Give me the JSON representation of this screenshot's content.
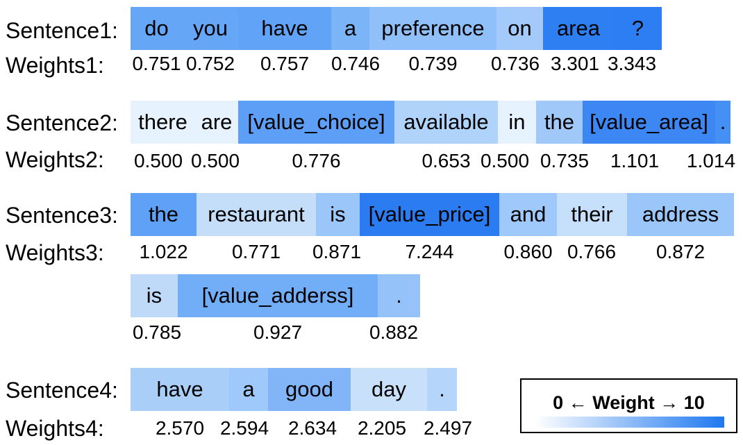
{
  "sentences": [
    {
      "label": "Sentence1:",
      "weights_label": "Weights1:",
      "tokens": [
        {
          "text": "do",
          "weight": "0.751",
          "color": "#66a6f7"
        },
        {
          "text": "you",
          "weight": "0.752",
          "color": "#66a6f7"
        },
        {
          "text": "have",
          "weight": "0.757",
          "color": "#61a3f7"
        },
        {
          "text": "a",
          "weight": "0.746",
          "color": "#7cb4f8"
        },
        {
          "text": "preference",
          "weight": "0.739",
          "color": "#8fc0fa"
        },
        {
          "text": "on",
          "weight": "0.736",
          "color": "#a3cafa"
        },
        {
          "text": "area",
          "weight": "3.301",
          "color": "#2e7ff2"
        },
        {
          "text": "?",
          "weight": "3.343",
          "color": "#2d7ef2"
        }
      ]
    },
    {
      "label": "Sentence2:",
      "weights_label": "Weights2:",
      "tokens": [
        {
          "text": "there",
          "weight": "0.500",
          "color": "#e6f2fe"
        },
        {
          "text": "are",
          "weight": "0.500",
          "color": "#e6f2fe"
        },
        {
          "text": "[value_choice]",
          "weight": "0.776",
          "color": "#5d9ff6"
        },
        {
          "text": "available",
          "weight": "0.653",
          "color": "#b0d3fb"
        },
        {
          "text": "in",
          "weight": "0.500",
          "color": "#e6f2fe"
        },
        {
          "text": "the",
          "weight": "0.735",
          "color": "#a0c9fa"
        },
        {
          "text": "[value_area]",
          "weight": "1.101",
          "color": "#3d87f4"
        },
        {
          "text": ".",
          "weight": "1.014",
          "color": "#4590f5"
        }
      ]
    },
    {
      "label": "Sentence3:",
      "weights_label": "Weights3:",
      "tokens": [
        {
          "text": "the",
          "weight": "1.022",
          "color": "#5ea1f6"
        },
        {
          "text": "restaurant",
          "weight": "0.771",
          "color": "#c4def9"
        },
        {
          "text": "is",
          "weight": "0.871",
          "color": "#9ac6f9"
        },
        {
          "text": "[value_price]",
          "weight": "7.244",
          "color": "#2a7cf0"
        },
        {
          "text": "and",
          "weight": "0.860",
          "color": "#9fc9fa"
        },
        {
          "text": "their",
          "weight": "0.766",
          "color": "#c6dffa"
        },
        {
          "text": "address",
          "weight": "0.872",
          "color": "#9ac6f9"
        },
        {
          "text": "is",
          "weight": "0.785",
          "color": "#bfdaf9"
        },
        {
          "text": "[value_adderss]",
          "weight": "0.927",
          "color": "#72adf7"
        },
        {
          "text": ".",
          "weight": "0.882",
          "color": "#95c3f9"
        }
      ]
    },
    {
      "label": "Sentence4:",
      "weights_label": "Weights4:",
      "tokens": [
        {
          "text": "have",
          "weight": "2.570",
          "color": "#a9cff9"
        },
        {
          "text": "a",
          "weight": "2.594",
          "color": "#9fc9fa"
        },
        {
          "text": "good",
          "weight": "2.634",
          "color": "#81b5f8"
        },
        {
          "text": "day",
          "weight": "2.205",
          "color": "#c8e0fa"
        },
        {
          "text": ".",
          "weight": "2.497",
          "color": "#b5d5fa"
        }
      ]
    }
  ],
  "legend": {
    "min": "0",
    "arrow_left": "←",
    "title": "Weight",
    "arrow_right": "→",
    "max": "10",
    "gradient_start": "#ffffff",
    "gradient_end": "#1e78f0"
  }
}
